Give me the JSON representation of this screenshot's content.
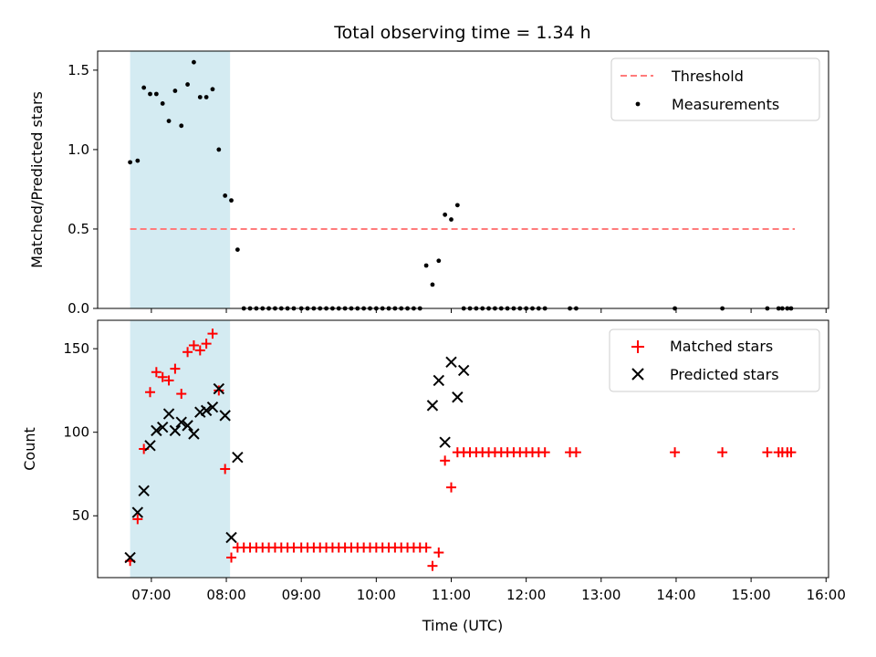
{
  "chart_data": [
    {
      "type": "scatter",
      "title": "Total observing time = 1.34 h",
      "xlabel": "",
      "ylabel": "Matched/Predicted stars",
      "xlim": [
        "06:17",
        "16:02"
      ],
      "ylim": [
        0,
        1.62
      ],
      "yticks": [
        0.0,
        0.5,
        1.0,
        1.5
      ],
      "ytick_labels": [
        "0.0",
        "0.5",
        "1.0",
        "1.5"
      ],
      "shaded_span": {
        "x0": "06:43",
        "x1": "08:03",
        "color": "#add8e6"
      },
      "legend": {
        "placement": "upper right"
      },
      "series": [
        {
          "name": "Threshold",
          "kind": "line",
          "style": "dashed",
          "color": "#ff7b7b",
          "x": [
            "06:43",
            "15:35"
          ],
          "y": [
            0.5,
            0.5
          ]
        },
        {
          "name": "Measurements",
          "kind": "scatter",
          "marker": "dot",
          "color": "#000000",
          "x": [
            "06:43",
            "06:49",
            "06:54",
            "06:59",
            "07:04",
            "07:09",
            "07:14",
            "07:19",
            "07:24",
            "07:29",
            "07:34",
            "07:39",
            "07:44",
            "07:49",
            "07:54",
            "07:59",
            "08:04",
            "08:09",
            "08:14",
            "08:19",
            "08:24",
            "08:29",
            "08:34",
            "08:39",
            "08:44",
            "08:49",
            "08:54",
            "09:00",
            "09:05",
            "09:10",
            "09:15",
            "09:20",
            "09:25",
            "09:30",
            "09:35",
            "09:40",
            "09:45",
            "09:50",
            "09:55",
            "10:00",
            "10:05",
            "10:10",
            "10:15",
            "10:20",
            "10:25",
            "10:30",
            "10:35",
            "10:40",
            "10:45",
            "10:50",
            "10:55",
            "11:00",
            "11:05",
            "11:10",
            "11:15",
            "11:20",
            "11:25",
            "11:30",
            "11:35",
            "11:40",
            "11:45",
            "11:50",
            "11:55",
            "12:00",
            "12:05",
            "12:10",
            "12:15",
            "12:35",
            "12:40",
            "13:59",
            "14:37",
            "15:13",
            "15:22",
            "15:25",
            "15:29",
            "15:32"
          ],
          "y": [
            0.92,
            0.93,
            1.39,
            1.35,
            1.35,
            1.29,
            1.18,
            1.37,
            1.15,
            1.41,
            1.55,
            1.33,
            1.33,
            1.38,
            1.0,
            0.71,
            0.68,
            0.37,
            0.0,
            0.0,
            0.0,
            0.0,
            0.0,
            0.0,
            0.0,
            0.0,
            0.0,
            0.0,
            0.0,
            0.0,
            0.0,
            0.0,
            0.0,
            0.0,
            0.0,
            0.0,
            0.0,
            0.0,
            0.0,
            0.0,
            0.0,
            0.0,
            0.0,
            0.0,
            0.0,
            0.0,
            0.0,
            0.27,
            0.15,
            0.3,
            0.59,
            0.56,
            0.65,
            0.0,
            0.0,
            0.0,
            0.0,
            0.0,
            0.0,
            0.0,
            0.0,
            0.0,
            0.0,
            0.0,
            0.0,
            0.0,
            0.0,
            0.0,
            0.0,
            0.0,
            0.0,
            0.0,
            0.0,
            0.0,
            0.0,
            0.0
          ]
        }
      ]
    },
    {
      "type": "scatter",
      "title": "",
      "xlabel": "Time (UTC)",
      "ylabel": "Count",
      "xlim": [
        "06:17",
        "16:02"
      ],
      "ylim": [
        13,
        167
      ],
      "yticks": [
        50,
        100,
        150
      ],
      "ytick_labels": [
        "50",
        "100",
        "150"
      ],
      "xticks": [
        "07:00",
        "08:00",
        "09:00",
        "10:00",
        "11:00",
        "12:00",
        "13:00",
        "14:00",
        "15:00",
        "16:00"
      ],
      "shaded_span": {
        "x0": "06:43",
        "x1": "08:03",
        "color": "#add8e6"
      },
      "legend": {
        "placement": "upper right"
      },
      "series": [
        {
          "name": "Matched stars",
          "kind": "scatter",
          "marker": "plus",
          "color": "#ff0000",
          "x": [
            "06:43",
            "06:49",
            "06:54",
            "06:59",
            "07:04",
            "07:09",
            "07:14",
            "07:19",
            "07:24",
            "07:29",
            "07:34",
            "07:39",
            "07:44",
            "07:49",
            "07:54",
            "07:59",
            "08:04",
            "08:09",
            "08:14",
            "08:19",
            "08:24",
            "08:29",
            "08:34",
            "08:39",
            "08:44",
            "08:49",
            "08:54",
            "09:00",
            "09:05",
            "09:10",
            "09:15",
            "09:20",
            "09:25",
            "09:30",
            "09:35",
            "09:40",
            "09:45",
            "09:50",
            "09:55",
            "10:00",
            "10:05",
            "10:10",
            "10:15",
            "10:20",
            "10:25",
            "10:30",
            "10:35",
            "10:40",
            "10:45",
            "10:50",
            "10:55",
            "11:00",
            "11:05",
            "11:10",
            "11:15",
            "11:20",
            "11:25",
            "11:30",
            "11:35",
            "11:40",
            "11:45",
            "11:50",
            "11:55",
            "12:00",
            "12:05",
            "12:10",
            "12:15",
            "12:35",
            "12:40",
            "13:59",
            "14:37",
            "15:13",
            "15:22",
            "15:25",
            "15:29",
            "15:32"
          ],
          "y": [
            23,
            48,
            90,
            124,
            136,
            133,
            131,
            138,
            123,
            148,
            152,
            149,
            153,
            159,
            125,
            78,
            25,
            31,
            31,
            31,
            31,
            31,
            31,
            31,
            31,
            31,
            31,
            31,
            31,
            31,
            31,
            31,
            31,
            31,
            31,
            31,
            31,
            31,
            31,
            31,
            31,
            31,
            31,
            31,
            31,
            31,
            31,
            31,
            20,
            28,
            83,
            67,
            88,
            88,
            88,
            88,
            88,
            88,
            88,
            88,
            88,
            88,
            88,
            88,
            88,
            88,
            88,
            88,
            88,
            88,
            88,
            88,
            88,
            88,
            88,
            88
          ]
        },
        {
          "name": "Predicted stars",
          "kind": "scatter",
          "marker": "x",
          "color": "#000000",
          "x": [
            "06:43",
            "06:49",
            "06:54",
            "06:59",
            "07:04",
            "07:09",
            "07:14",
            "07:19",
            "07:24",
            "07:29",
            "07:34",
            "07:39",
            "07:44",
            "07:49",
            "07:54",
            "07:59",
            "08:04",
            "08:09",
            "10:45",
            "10:50",
            "10:55",
            "11:00",
            "11:05",
            "11:10"
          ],
          "y": [
            25,
            52,
            65,
            92,
            101,
            103,
            111,
            101,
            106,
            104,
            99,
            112,
            113,
            115,
            126,
            110,
            37,
            85,
            116,
            131,
            94,
            142,
            121,
            137
          ]
        }
      ]
    }
  ]
}
